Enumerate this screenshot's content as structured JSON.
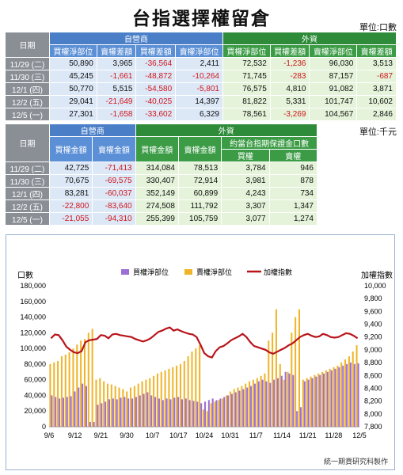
{
  "title": "台指選擇權留倉",
  "unit_top": "單位:口數",
  "unit_bottom": "單位:千元",
  "table1": {
    "date_header": "日期",
    "group_left": "自營商",
    "group_right": "外資",
    "columns": [
      "買權淨部位",
      "賣權差額",
      "買權差額",
      "賣權淨部位",
      "買權淨部位",
      "買權差額",
      "賣權淨部位",
      "賣權差額"
    ],
    "rows": [
      {
        "date": "11/29 (二)",
        "values": [
          "50,890",
          "3,965",
          "-36,564",
          "2,411",
          "72,532",
          "-1,236",
          "96,030",
          "3,513"
        ]
      },
      {
        "date": "11/30 (三)",
        "values": [
          "45,245",
          "-1,661",
          "-48,872",
          "-10,264",
          "71,745",
          "-283",
          "87,157",
          "-687"
        ]
      },
      {
        "date": "12/1 (四)",
        "values": [
          "50,770",
          "5,515",
          "-54,580",
          "-5,801",
          "76,575",
          "4,810",
          "91,082",
          "3,871"
        ]
      },
      {
        "date": "12/2 (五)",
        "values": [
          "29,041",
          "-21,649",
          "-40,025",
          "14,397",
          "81,822",
          "5,331",
          "101,747",
          "10,602"
        ]
      },
      {
        "date": "12/5 (一)",
        "values": [
          "27,301",
          "-1,658",
          "-33,602",
          "6,329",
          "78,561",
          "-3,269",
          "104,567",
          "2,846"
        ]
      }
    ]
  },
  "table2": {
    "date_header": "日期",
    "group_left": "自營商",
    "group_right": "外資",
    "sub_group": "約當台指期保證金口數",
    "columns": [
      "買權金額",
      "賣權金額",
      "買權金額",
      "賣權金額",
      "買權",
      "賣權"
    ],
    "rows": [
      {
        "date": "11/29 (二)",
        "values": [
          "42,725",
          "-71,413",
          "314,084",
          "78,513",
          "3,784",
          "946"
        ]
      },
      {
        "date": "11/30 (三)",
        "values": [
          "70,675",
          "-69,575",
          "330,407",
          "72,914",
          "3,981",
          "878"
        ]
      },
      {
        "date": "12/1 (四)",
        "values": [
          "83,281",
          "-60,037",
          "352,149",
          "60,899",
          "4,243",
          "734"
        ]
      },
      {
        "date": "12/2 (五)",
        "values": [
          "-22,800",
          "-83,640",
          "274,508",
          "111,792",
          "3,307",
          "1,347"
        ]
      },
      {
        "date": "12/5 (一)",
        "values": [
          "-21,055",
          "-94,310",
          "255,399",
          "105,759",
          "3,077",
          "1,274"
        ]
      }
    ]
  },
  "note": "統一期貨研究科製作",
  "colors": {
    "call": "#9b6fd6",
    "put": "#f0b429",
    "index": "#b8141a"
  },
  "chart_data": {
    "type": "bar",
    "ylabel": "口數",
    "y2label": "加權指數",
    "ylim": [
      0,
      180000
    ],
    "y2lim": [
      7800,
      10000
    ],
    "yticks": [
      "0",
      "20,000",
      "40,000",
      "60,000",
      "80,000",
      "100,000",
      "120,000",
      "140,000",
      "160,000",
      "180,000"
    ],
    "y2ticks": [
      "7,800",
      "8,000",
      "8,200",
      "8,400",
      "8,600",
      "8,800",
      "9,000",
      "9,200",
      "9,400",
      "9,600",
      "9,800",
      "10,000"
    ],
    "xticks": [
      "9/6",
      "9/12",
      "9/21",
      "9/30",
      "10/7",
      "10/17",
      "10/24",
      "10/31",
      "11/7",
      "11/14",
      "11/21",
      "11/28",
      "12/5"
    ],
    "legend": [
      "買權淨部位",
      "賣權淨部位",
      "加權指數"
    ],
    "series": [
      {
        "name": "買權淨部位",
        "values": [
          40000,
          38000,
          36000,
          37000,
          38000,
          39000,
          45000,
          50000,
          55000,
          52000,
          6000,
          6000,
          28000,
          30000,
          32000,
          35000,
          36000,
          35000,
          37000,
          38000,
          36000,
          36000,
          38000,
          40000,
          42000,
          44000,
          40000,
          38000,
          36000,
          34000,
          36000,
          35000,
          37000,
          38000,
          35000,
          36000,
          34000,
          33000,
          32000,
          30000,
          32000,
          34000,
          36000,
          34000,
          36000,
          38000,
          40000,
          42000,
          44000,
          46000,
          48000,
          50000,
          52000,
          55000,
          58000,
          60000,
          58000,
          56000,
          60000,
          62000,
          65000,
          70000,
          68000,
          66000,
          20000,
          25000,
          58000,
          60000,
          62000,
          64000,
          66000,
          68000,
          70000,
          72000,
          74000,
          76000,
          78000,
          80000,
          82000,
          80000,
          81000
        ]
      },
      {
        "name": "賣權淨部位",
        "values": [
          80000,
          82000,
          84000,
          90000,
          92000,
          95000,
          100000,
          105000,
          110000,
          112000,
          120000,
          125000,
          60000,
          62000,
          58000,
          55000,
          54000,
          52000,
          50000,
          48000,
          45000,
          50000,
          52000,
          55000,
          58000,
          60000,
          62000,
          65000,
          68000,
          70000,
          72000,
          74000,
          76000,
          78000,
          80000,
          84000,
          90000,
          96000,
          100000,
          104000,
          22000,
          20000,
          30000,
          32000,
          34000,
          36000,
          40000,
          45000,
          48000,
          50000,
          52000,
          55000,
          58000,
          60000,
          62000,
          65000,
          68000,
          110000,
          120000,
          150000,
          80000,
          60000,
          70000,
          120000,
          140000,
          150000,
          60000,
          62000,
          64000,
          66000,
          68000,
          70000,
          72000,
          74000,
          76000,
          78000,
          82000,
          86000,
          90000,
          96000,
          104000
        ]
      },
      {
        "name": "加權指數",
        "values": [
          9180,
          9240,
          9230,
          9150,
          9050,
          9000,
          8960,
          8950,
          8980,
          9120,
          9150,
          9160,
          9170,
          9230,
          9220,
          9180,
          9240,
          9250,
          9230,
          9220,
          9210,
          9200,
          9170,
          9150,
          9130,
          9150,
          9180,
          9230,
          9280,
          9300,
          9330,
          9350,
          9300,
          9320,
          9290,
          9270,
          9250,
          9240,
          9200,
          9080,
          8950,
          8900,
          8880,
          8980,
          9040,
          9060,
          9100,
          9150,
          9180,
          9210,
          9250,
          9200,
          9120,
          9060,
          9040,
          9020,
          9000,
          8960,
          8940,
          8970,
          9000,
          9030,
          9070,
          9100,
          9150,
          9200,
          9230,
          9250,
          9220,
          9200,
          9210,
          9250,
          9230,
          9200,
          9190,
          9200,
          9230,
          9260,
          9250,
          9220,
          9180
        ]
      }
    ]
  }
}
